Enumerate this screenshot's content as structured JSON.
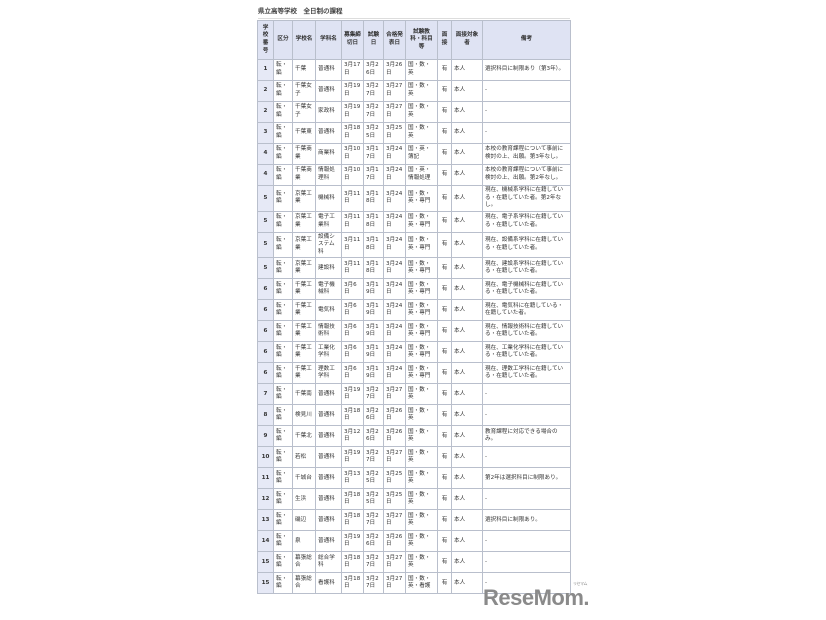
{
  "title": "県立高等学校　全日制の課程",
  "headers": [
    "学校番号",
    "区分",
    "学校名",
    "学科名",
    "募集締切日",
    "試験日",
    "合格発表日",
    "試験教科・科目等",
    "面接",
    "面接対象者",
    "備考"
  ],
  "rows": [
    [
      "1",
      "転・編",
      "千葉",
      "普通科",
      "3月17日",
      "3月26日",
      "3月26日",
      "国・数・英",
      "有",
      "本人",
      "選択科目に制限あり（第3年）。"
    ],
    [
      "2",
      "転・編",
      "千葉女子",
      "普通科",
      "3月19日",
      "3月27日",
      "3月27日",
      "国・数・英",
      "有",
      "本人",
      "-"
    ],
    [
      "2",
      "転・編",
      "千葉女子",
      "家政科",
      "3月19日",
      "3月27日",
      "3月27日",
      "国・数・英",
      "有",
      "本人",
      "-"
    ],
    [
      "3",
      "転・編",
      "千葉東",
      "普通科",
      "3月18日",
      "3月25日",
      "3月25日",
      "国・数・英",
      "有",
      "本人",
      "-"
    ],
    [
      "4",
      "転・編",
      "千葉商業",
      "商業科",
      "3月10日",
      "3月17日",
      "3月24日",
      "国・英・簿記",
      "有",
      "本人",
      "本校の教育課程について事前に検討の上、出願。第3年なし。"
    ],
    [
      "4",
      "転・編",
      "千葉商業",
      "情報処理科",
      "3月10日",
      "3月17日",
      "3月24日",
      "国・英・情報処理",
      "有",
      "本人",
      "本校の教育課程について事前に検討の上、出願。第2年なし。"
    ],
    [
      "5",
      "転・編",
      "京葉工業",
      "機械科",
      "3月11日",
      "3月18日",
      "3月24日",
      "国・数・英・専門",
      "有",
      "本人",
      "現在、機械系学科に在籍している・在籍していた者。第2年なし。"
    ],
    [
      "5",
      "転・編",
      "京葉工業",
      "電子工業科",
      "3月11日",
      "3月18日",
      "3月24日",
      "国・数・英・専門",
      "有",
      "本人",
      "現在、電子系学科に在籍している・在籍していた者。"
    ],
    [
      "5",
      "転・編",
      "京葉工業",
      "設備システム科",
      "3月11日",
      "3月18日",
      "3月24日",
      "国・数・英・専門",
      "有",
      "本人",
      "現在、設備系学科に在籍している・在籍していた者。"
    ],
    [
      "5",
      "転・編",
      "京葉工業",
      "建設科",
      "3月11日",
      "3月18日",
      "3月24日",
      "国・数・英・専門",
      "有",
      "本人",
      "現在、建設系学科に在籍している・在籍していた者。"
    ],
    [
      "6",
      "転・編",
      "千葉工業",
      "電子機械科",
      "3月6日",
      "3月19日",
      "3月24日",
      "国・数・英・専門",
      "有",
      "本人",
      "現在、電子機械科に在籍している・在籍していた者。"
    ],
    [
      "6",
      "転・編",
      "千葉工業",
      "電気科",
      "3月6日",
      "3月19日",
      "3月24日",
      "国・数・英・専門",
      "有",
      "本人",
      "現在、電気科に在籍している・在籍していた者。"
    ],
    [
      "6",
      "転・編",
      "千葉工業",
      "情報技術科",
      "3月6日",
      "3月19日",
      "3月24日",
      "国・数・英・専門",
      "有",
      "本人",
      "現在、情報技術科に在籍している・在籍していた者。"
    ],
    [
      "6",
      "転・編",
      "千葉工業",
      "工業化学科",
      "3月6日",
      "3月19日",
      "3月24日",
      "国・数・英・専門",
      "有",
      "本人",
      "現在、工業化学科に在籍している・在籍していた者。"
    ],
    [
      "6",
      "転・編",
      "千葉工業",
      "理数工学科",
      "3月6日",
      "3月19日",
      "3月24日",
      "国・数・英・専門",
      "有",
      "本人",
      "現在、理数工学科に在籍している・在籍していた者。"
    ],
    [
      "7",
      "転・編",
      "千葉南",
      "普通科",
      "3月19日",
      "3月27日",
      "3月27日",
      "国・数・英",
      "有",
      "本人",
      "-"
    ],
    [
      "8",
      "転・編",
      "検見川",
      "普通科",
      "3月18日",
      "3月26日",
      "3月26日",
      "国・数・英",
      "有",
      "本人",
      "-"
    ],
    [
      "9",
      "転・編",
      "千葉北",
      "普通科",
      "3月12日",
      "3月26日",
      "3月26日",
      "国・数・英",
      "有",
      "本人",
      "教育課程に対応できる場合のみ。"
    ],
    [
      "10",
      "転・編",
      "若松",
      "普通科",
      "3月19日",
      "3月27日",
      "3月27日",
      "国・数・英",
      "有",
      "本人",
      "-"
    ],
    [
      "11",
      "転・編",
      "千城台",
      "普通科",
      "3月13日",
      "3月25日",
      "3月25日",
      "国・数・英",
      "有",
      "本人",
      "第2年は選択科目に制限あり。"
    ],
    [
      "12",
      "転・編",
      "生浜",
      "普通科",
      "3月18日",
      "3月25日",
      "3月25日",
      "国・数・英",
      "有",
      "本人",
      "-"
    ],
    [
      "13",
      "転・編",
      "磯辺",
      "普通科",
      "3月18日",
      "3月27日",
      "3月27日",
      "国・数・英",
      "有",
      "本人",
      "選択科目に制限あり。"
    ],
    [
      "14",
      "転・編",
      "泉",
      "普通科",
      "3月19日",
      "3月26日",
      "3月26日",
      "国・数・英",
      "有",
      "本人",
      "-"
    ],
    [
      "15",
      "転・編",
      "幕張総合",
      "総合学科",
      "3月18日",
      "3月27日",
      "3月27日",
      "国・数・英",
      "有",
      "本人",
      "-"
    ],
    [
      "15",
      "転・編",
      "幕張総合",
      "看護科",
      "3月18日",
      "3月27日",
      "3月27日",
      "国・数・英・看護",
      "有",
      "本人",
      "-"
    ]
  ],
  "logo": {
    "text": "ReseMom.",
    "ruby": "リセマム"
  }
}
